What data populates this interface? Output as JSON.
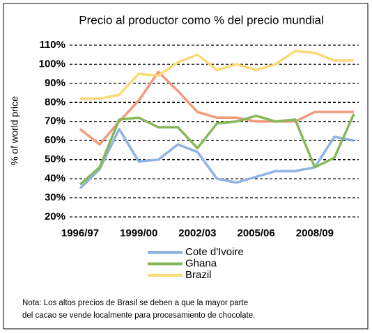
{
  "chart_data": {
    "type": "line",
    "title": "Precio al productor como % del precio mundial",
    "y_label": "% of world price",
    "categories": [
      "1996/97",
      null,
      null,
      "1999/00",
      null,
      null,
      "2002/03",
      null,
      null,
      "2005/06",
      null,
      null,
      "2008/09",
      null,
      null
    ],
    "series": [
      {
        "name": "Cote d'Ivoire",
        "color": "#8fb4e3",
        "values": [
          35,
          45,
          66,
          49,
          50,
          58,
          54,
          40,
          38,
          41,
          44,
          44,
          46,
          62,
          60
        ]
      },
      {
        "name": "Ghana",
        "color": "#86b85a",
        "values": [
          37,
          46,
          71,
          72,
          67,
          67,
          56,
          69,
          70,
          73,
          70,
          71,
          46,
          51,
          74
        ]
      },
      {
        "name": "Brazil",
        "color": "#f9d978",
        "values": [
          82,
          82,
          84,
          95,
          94,
          101,
          105,
          97,
          100,
          97,
          100,
          107,
          106,
          102,
          102
        ]
      },
      {
        "color": "#f19a7c",
        "values": [
          66,
          58,
          70,
          81,
          96,
          86,
          75,
          72,
          72,
          70,
          70,
          70,
          75,
          75,
          75
        ]
      }
    ],
    "ylim": [
      20,
      110
    ],
    "yticks": [
      {
        "value": 20,
        "label": "20%"
      },
      {
        "value": 30,
        "label": "30%"
      },
      {
        "value": 40,
        "label": "40%"
      },
      {
        "value": 50,
        "label": "50%"
      },
      {
        "value": 60,
        "label": "60%"
      },
      {
        "value": 70,
        "label": "70%"
      },
      {
        "value": 80,
        "label": "80%"
      },
      {
        "value": 90,
        "label": "90%"
      },
      {
        "value": 100,
        "label": "100%"
      },
      {
        "value": 110,
        "label": "110%"
      }
    ],
    "grid": true,
    "note": [
      "Nota:  Los altos precios de Brasil se deben a que la mayor parte",
      "del cacao se vende localmente para procesamiento de chocolate."
    ]
  }
}
